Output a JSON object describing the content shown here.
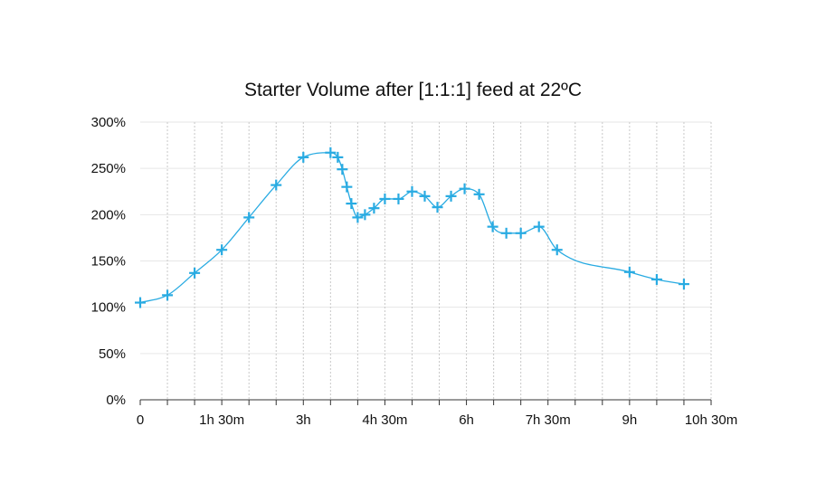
{
  "chart_data": {
    "type": "line",
    "title": "Starter Volume after [1:1:1] feed at 22ºC",
    "xlabel": "",
    "ylabel": "",
    "x_unit": "minutes",
    "xlim": [
      0,
      630
    ],
    "ylim": [
      0,
      300
    ],
    "x_ticks": [
      0,
      30,
      60,
      90,
      120,
      150,
      180,
      210,
      240,
      270,
      300,
      330,
      360,
      390,
      420,
      450,
      480,
      510,
      540,
      570,
      600,
      630
    ],
    "x_tick_labels": [
      {
        "value": 0,
        "label": "0"
      },
      {
        "value": 90,
        "label": "1h 30m"
      },
      {
        "value": 180,
        "label": "3h"
      },
      {
        "value": 270,
        "label": "4h 30m"
      },
      {
        "value": 360,
        "label": "6h"
      },
      {
        "value": 450,
        "label": "7h 30m"
      },
      {
        "value": 540,
        "label": "9h"
      },
      {
        "value": 630,
        "label": "10h 30m"
      }
    ],
    "y_ticks": [
      {
        "value": 0,
        "label": "0%"
      },
      {
        "value": 50,
        "label": "50%"
      },
      {
        "value": 100,
        "label": "100%"
      },
      {
        "value": 150,
        "label": "150%"
      },
      {
        "value": 200,
        "label": "200%"
      },
      {
        "value": 250,
        "label": "250%"
      },
      {
        "value": 300,
        "label": "300%"
      }
    ],
    "grid": true,
    "colors": {
      "series": "#29abe2",
      "grid": "#c8c8c8",
      "axis": "#333333"
    },
    "series": [
      {
        "x": [
          0,
          30,
          60,
          90,
          120,
          150,
          180,
          210,
          218,
          223,
          228,
          233,
          240,
          248,
          258,
          270,
          285,
          300,
          314,
          328,
          343,
          358,
          374,
          389,
          404,
          420,
          440,
          460,
          540,
          570,
          600
        ],
        "y": [
          105,
          113,
          137,
          162,
          197,
          232,
          262,
          267,
          262,
          249,
          230,
          212,
          197,
          200,
          207,
          217,
          217,
          225,
          220,
          208,
          220,
          228,
          222,
          187,
          180,
          180,
          187,
          162,
          138,
          130,
          125
        ]
      }
    ]
  }
}
